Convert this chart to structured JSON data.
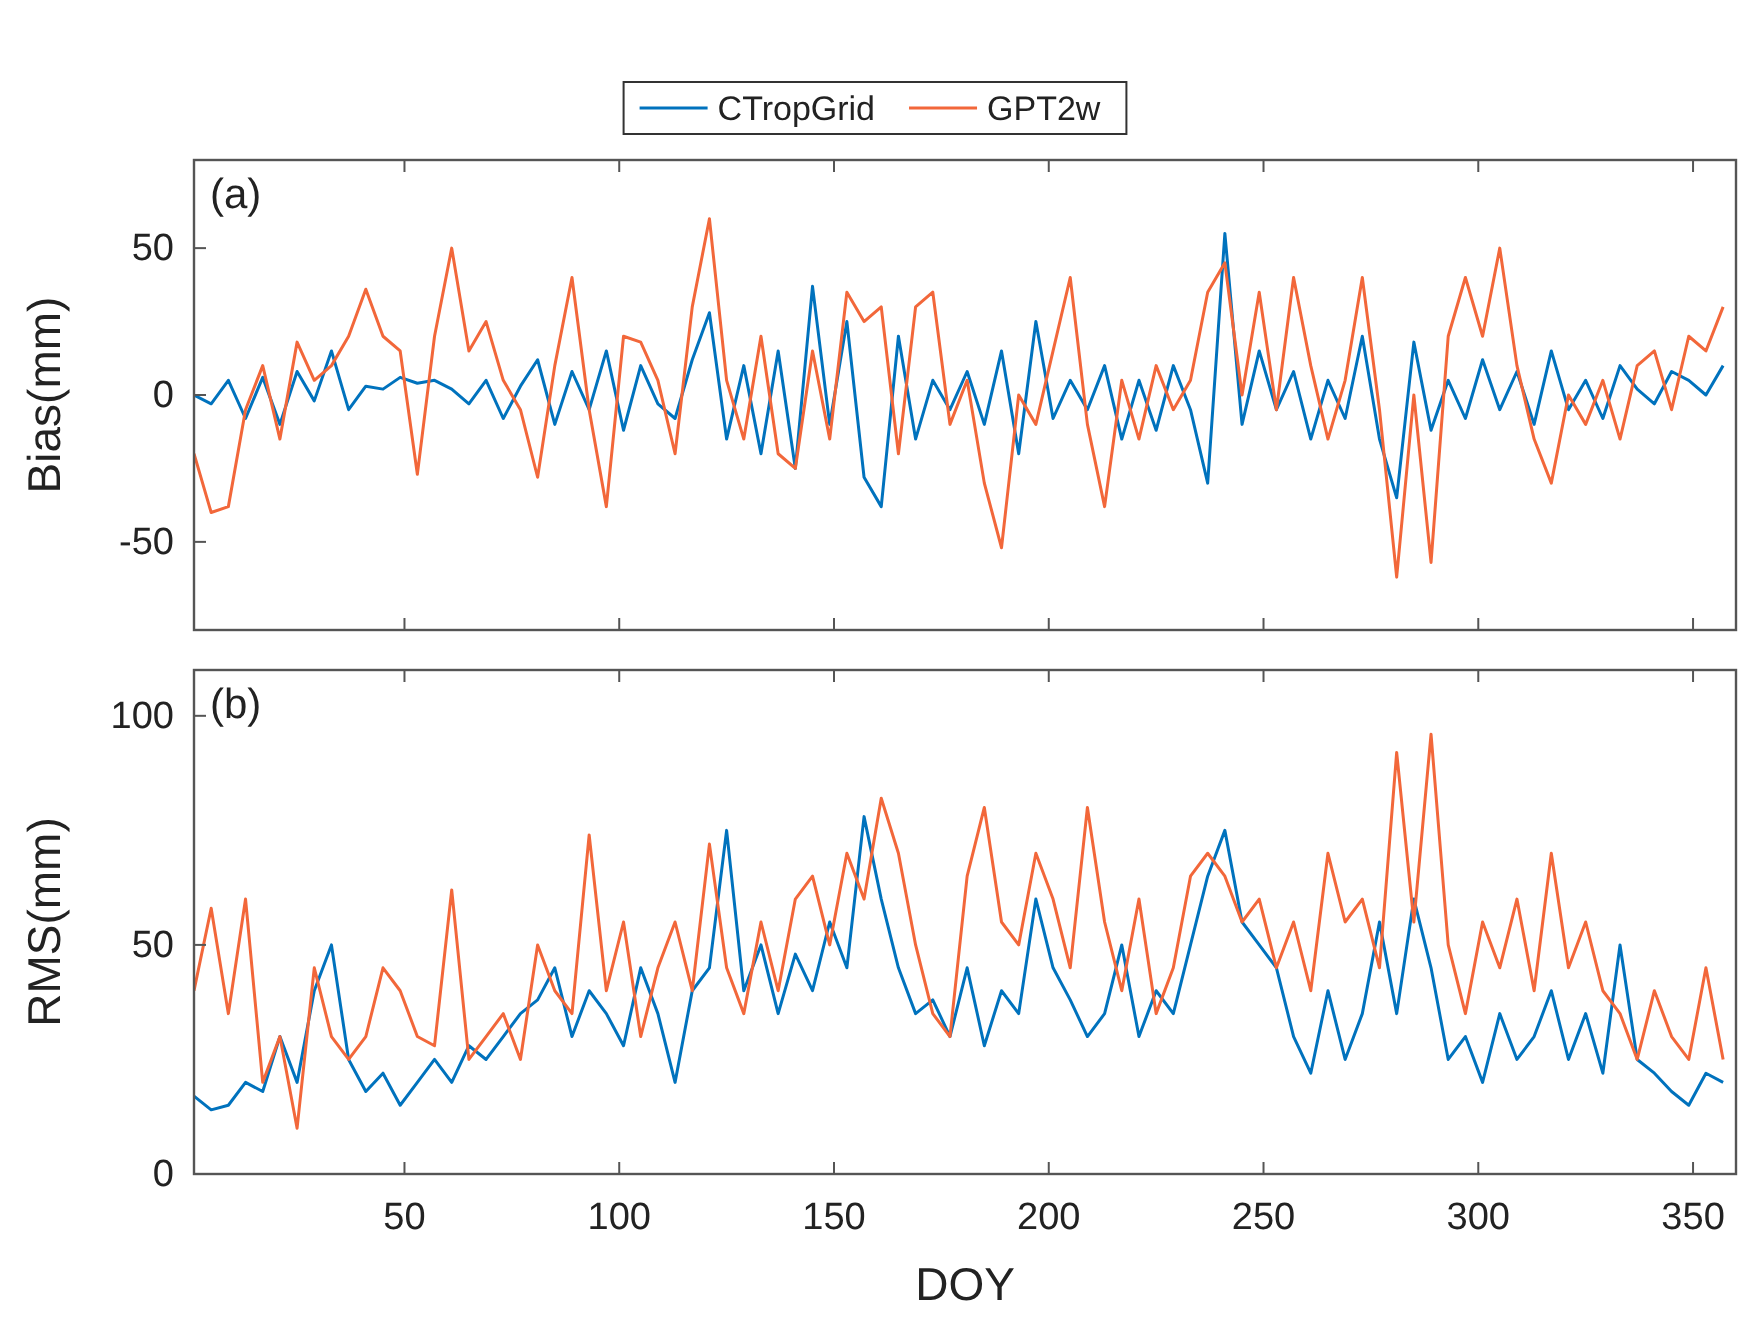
{
  "chart_data": [
    {
      "type": "line",
      "ylabel": "Bias(mm)",
      "annotations": [
        "(a)"
      ],
      "legend": "top",
      "tick_labels": "y",
      "xlim": [
        1,
        360
      ],
      "xticks": [
        50,
        100,
        150,
        200,
        250,
        300,
        350
      ],
      "ylim": [
        -80,
        80
      ],
      "yticks": [
        -50,
        0,
        50
      ],
      "grid": false,
      "line_style": "solid",
      "marker": "none",
      "x": [
        1,
        5,
        9,
        13,
        17,
        21,
        25,
        29,
        33,
        37,
        41,
        45,
        49,
        53,
        57,
        61,
        65,
        69,
        73,
        77,
        81,
        85,
        89,
        93,
        97,
        101,
        105,
        109,
        113,
        117,
        121,
        125,
        129,
        133,
        137,
        141,
        145,
        149,
        153,
        157,
        161,
        165,
        169,
        173,
        177,
        181,
        185,
        189,
        193,
        197,
        201,
        205,
        209,
        213,
        217,
        221,
        225,
        229,
        233,
        237,
        241,
        245,
        249,
        253,
        257,
        261,
        265,
        269,
        273,
        277,
        281,
        285,
        289,
        293,
        297,
        301,
        305,
        309,
        313,
        317,
        321,
        325,
        329,
        333,
        337,
        341,
        345,
        349,
        353,
        357
      ],
      "series": [
        {
          "name": "CTropGrid",
          "color": "#0072bd",
          "values": [
            0,
            -3,
            5,
            -8,
            6,
            -10,
            8,
            -2,
            15,
            -5,
            3,
            2,
            6,
            4,
            5,
            2,
            -3,
            5,
            -8,
            3,
            12,
            -10,
            8,
            -5,
            15,
            -12,
            10,
            -3,
            -8,
            12,
            28,
            -15,
            10,
            -20,
            15,
            -25,
            37,
            -10,
            25,
            -28,
            -38,
            20,
            -15,
            5,
            -5,
            8,
            -10,
            15,
            -20,
            25,
            -8,
            5,
            -5,
            10,
            -15,
            5,
            -12,
            10,
            -5,
            -30,
            55,
            -10,
            15,
            -5,
            8,
            -15,
            5,
            -8,
            20,
            -15,
            -35,
            18,
            -12,
            5,
            -8,
            12,
            -5,
            8,
            -10,
            15,
            -5,
            5,
            -8,
            10,
            2,
            -3,
            8,
            5,
            0,
            10
          ]
        },
        {
          "name": "GPT2w",
          "color": "#f2673a",
          "values": [
            -20,
            -40,
            -38,
            -5,
            10,
            -15,
            18,
            5,
            10,
            20,
            36,
            20,
            15,
            -27,
            20,
            50,
            15,
            25,
            5,
            -5,
            -28,
            10,
            40,
            -5,
            -38,
            20,
            18,
            5,
            -20,
            30,
            60,
            5,
            -15,
            20,
            -20,
            -25,
            15,
            -15,
            35,
            25,
            30,
            -20,
            30,
            35,
            -10,
            5,
            -30,
            -52,
            0,
            -10,
            15,
            40,
            -10,
            -38,
            5,
            -15,
            10,
            -5,
            5,
            35,
            45,
            0,
            35,
            -5,
            40,
            10,
            -15,
            5,
            40,
            -5,
            -62,
            0,
            -57,
            20,
            40,
            20,
            50,
            10,
            -15,
            -30,
            0,
            -10,
            5,
            -15,
            10,
            15,
            -5,
            20,
            15,
            30
          ]
        }
      ]
    },
    {
      "type": "line",
      "xlabel": "DOY",
      "ylabel": "RMS(mm)",
      "annotations": [
        "(b)"
      ],
      "xlim": [
        1,
        360
      ],
      "xticks": [
        50,
        100,
        150,
        200,
        250,
        300,
        350
      ],
      "ylim": [
        0,
        110
      ],
      "yticks": [
        0,
        50,
        100
      ],
      "grid": false,
      "line_style": "solid",
      "marker": "none",
      "x": [
        1,
        5,
        9,
        13,
        17,
        21,
        25,
        29,
        33,
        37,
        41,
        45,
        49,
        53,
        57,
        61,
        65,
        69,
        73,
        77,
        81,
        85,
        89,
        93,
        97,
        101,
        105,
        109,
        113,
        117,
        121,
        125,
        129,
        133,
        137,
        141,
        145,
        149,
        153,
        157,
        161,
        165,
        169,
        173,
        177,
        181,
        185,
        189,
        193,
        197,
        201,
        205,
        209,
        213,
        217,
        221,
        225,
        229,
        233,
        237,
        241,
        245,
        249,
        253,
        257,
        261,
        265,
        269,
        273,
        277,
        281,
        285,
        289,
        293,
        297,
        301,
        305,
        309,
        313,
        317,
        321,
        325,
        329,
        333,
        337,
        341,
        345,
        349,
        353,
        357
      ],
      "series": [
        {
          "color": "#0072bd",
          "values": [
            17,
            14,
            15,
            20,
            18,
            30,
            20,
            40,
            50,
            25,
            18,
            22,
            15,
            20,
            25,
            20,
            28,
            25,
            30,
            35,
            38,
            45,
            30,
            40,
            35,
            28,
            45,
            35,
            20,
            40,
            45,
            75,
            40,
            50,
            35,
            48,
            40,
            55,
            45,
            78,
            60,
            45,
            35,
            38,
            30,
            45,
            28,
            40,
            35,
            60,
            45,
            38,
            30,
            35,
            50,
            30,
            40,
            35,
            50,
            65,
            75,
            55,
            50,
            45,
            30,
            22,
            40,
            25,
            35,
            55,
            35,
            60,
            45,
            25,
            30,
            20,
            35,
            25,
            30,
            40,
            25,
            35,
            22,
            50,
            25,
            22,
            18,
            15,
            22,
            20
          ]
        },
        {
          "color": "#f2673a",
          "values": [
            40,
            58,
            35,
            60,
            20,
            30,
            10,
            45,
            30,
            25,
            30,
            45,
            40,
            30,
            28,
            62,
            25,
            30,
            35,
            25,
            50,
            40,
            35,
            74,
            40,
            55,
            30,
            45,
            55,
            40,
            72,
            45,
            35,
            55,
            40,
            60,
            65,
            50,
            70,
            60,
            82,
            70,
            50,
            35,
            30,
            65,
            80,
            55,
            50,
            70,
            60,
            45,
            80,
            55,
            40,
            60,
            35,
            45,
            65,
            70,
            65,
            55,
            60,
            45,
            55,
            40,
            70,
            55,
            60,
            45,
            92,
            55,
            96,
            50,
            35,
            55,
            45,
            60,
            40,
            70,
            45,
            55,
            40,
            35,
            25,
            40,
            30,
            25,
            45,
            25
          ]
        }
      ]
    }
  ]
}
